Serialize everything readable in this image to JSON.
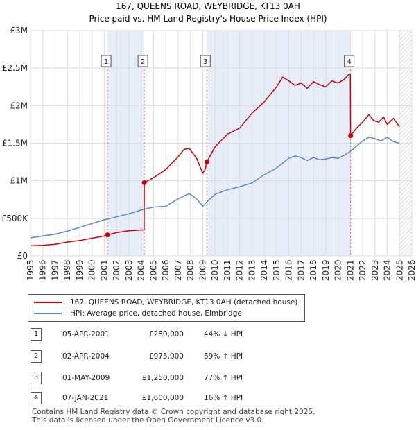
{
  "header": {
    "line1": "167, QUEENS ROAD, WEYBRIDGE, KT13 0AH",
    "line2": "Price paid vs. HM Land Registry's House Price Index (HPI)"
  },
  "legend": {
    "property": "167, QUEENS ROAD, WEYBRIDGE, KT13 0AH (detached house)",
    "hpi": "HPI: Average price, detached house, Elmbridge"
  },
  "transactions": [
    {
      "num": "1",
      "date": "05-APR-2001",
      "price": "£280,000",
      "hpi": "44% ↓ HPI"
    },
    {
      "num": "2",
      "date": "02-APR-2004",
      "price": "£975,000",
      "hpi": "59% ↑ HPI"
    },
    {
      "num": "3",
      "date": "01-MAY-2009",
      "price": "£1,250,000",
      "hpi": "77% ↑ HPI"
    },
    {
      "num": "4",
      "date": "07-JAN-2021",
      "price": "£1,600,000",
      "hpi": "16% ↑ HPI"
    }
  ],
  "footer": {
    "line1": "Contains HM Land Registry data © Crown copyright and database right 2025.",
    "line2": "This data is licensed under the Open Government Licence v3.0."
  },
  "colors": {
    "property": "#cc0000",
    "hpi": "#5588cc",
    "shade": "#e8eef9",
    "grid": "#dddddd",
    "vline": "#dd6666"
  },
  "chart_data": {
    "type": "line",
    "title": "167, QUEENS ROAD, WEYBRIDGE, KT13 0AH",
    "subtitle": "Price paid vs. HM Land Registry's House Price Index (HPI)",
    "xlabel": "",
    "ylabel": "",
    "xlim": [
      1995,
      2026
    ],
    "ylim": [
      0,
      3000000
    ],
    "x_ticks": [
      1995,
      1996,
      1997,
      1998,
      1999,
      2000,
      2001,
      2002,
      2003,
      2004,
      2005,
      2006,
      2007,
      2008,
      2009,
      2010,
      2011,
      2012,
      2013,
      2014,
      2015,
      2016,
      2017,
      2018,
      2019,
      2020,
      2021,
      2022,
      2023,
      2024,
      2025,
      2026
    ],
    "y_ticks": [
      {
        "value": 0,
        "label": "£0"
      },
      {
        "value": 500000,
        "label": "£500K"
      },
      {
        "value": 1000000,
        "label": "£1M"
      },
      {
        "value": 1500000,
        "label": "£1.5M"
      },
      {
        "value": 2000000,
        "label": "£2M"
      },
      {
        "value": 2500000,
        "label": "£2.5M"
      },
      {
        "value": 3000000,
        "label": "£3M"
      }
    ],
    "grid": true,
    "legend_position": "below",
    "shaded_ranges": [
      [
        2001.26,
        2004.25
      ],
      [
        2009.33,
        2021.02
      ]
    ],
    "future_hatch_from": 2025.0,
    "sales": [
      {
        "label": "1",
        "x": 2001.26,
        "y": 280000
      },
      {
        "label": "2",
        "x": 2004.25,
        "y": 975000
      },
      {
        "label": "3",
        "x": 2009.33,
        "y": 1250000
      },
      {
        "label": "4",
        "x": 2021.02,
        "y": 1600000
      }
    ],
    "series": [
      {
        "name": "167, QUEENS ROAD, WEYBRIDGE, KT13 0AH (detached house)",
        "x": [
          1995.0,
          1996.0,
          1997.0,
          1998.0,
          1999.0,
          2000.0,
          2001.0,
          2001.26,
          2002.0,
          2003.0,
          2004.0,
          2004.24,
          2004.25,
          2005.0,
          2006.0,
          2007.0,
          2007.5,
          2007.9,
          2008.5,
          2009.0,
          2009.2,
          2009.33,
          2010.0,
          2011.0,
          2012.0,
          2013.0,
          2014.0,
          2015.0,
          2015.5,
          2016.0,
          2016.5,
          2017.0,
          2017.5,
          2018.0,
          2018.5,
          2019.0,
          2019.5,
          2020.0,
          2020.5,
          2020.9,
          2021.0,
          2021.02,
          2021.5,
          2022.0,
          2022.5,
          2022.9,
          2023.3,
          2023.7,
          2024.0,
          2024.5,
          2025.0
        ],
        "values": [
          135000,
          140000,
          155000,
          185000,
          205000,
          235000,
          265000,
          280000,
          310000,
          335000,
          345000,
          345000,
          975000,
          1040000,
          1150000,
          1320000,
          1420000,
          1430000,
          1300000,
          1100000,
          1150000,
          1250000,
          1450000,
          1620000,
          1700000,
          1900000,
          2050000,
          2250000,
          2380000,
          2330000,
          2270000,
          2300000,
          2230000,
          2320000,
          2280000,
          2250000,
          2330000,
          2300000,
          2350000,
          2420000,
          2410000,
          1600000,
          1700000,
          1780000,
          1880000,
          1800000,
          1780000,
          1850000,
          1750000,
          1830000,
          1720000
        ]
      },
      {
        "name": "HPI: Average price, detached house, Elmbridge",
        "x": [
          1995.0,
          1996.0,
          1997.0,
          1998.0,
          1999.0,
          2000.0,
          2001.0,
          2002.0,
          2003.0,
          2004.0,
          2005.0,
          2006.0,
          2007.0,
          2007.9,
          2008.5,
          2009.0,
          2009.4,
          2010.0,
          2011.0,
          2012.0,
          2013.0,
          2014.0,
          2015.0,
          2016.0,
          2016.5,
          2017.0,
          2017.5,
          2018.0,
          2018.5,
          2019.0,
          2019.5,
          2020.0,
          2020.5,
          2021.0,
          2021.5,
          2022.0,
          2022.5,
          2023.0,
          2023.5,
          2024.0,
          2024.5,
          2025.0
        ],
        "values": [
          240000,
          265000,
          290000,
          330000,
          380000,
          430000,
          480000,
          520000,
          560000,
          610000,
          650000,
          660000,
          760000,
          830000,
          760000,
          660000,
          730000,
          820000,
          880000,
          920000,
          970000,
          1080000,
          1170000,
          1300000,
          1330000,
          1310000,
          1270000,
          1310000,
          1280000,
          1290000,
          1310000,
          1300000,
          1340000,
          1390000,
          1460000,
          1530000,
          1580000,
          1560000,
          1530000,
          1580000,
          1520000,
          1500000
        ]
      }
    ]
  }
}
